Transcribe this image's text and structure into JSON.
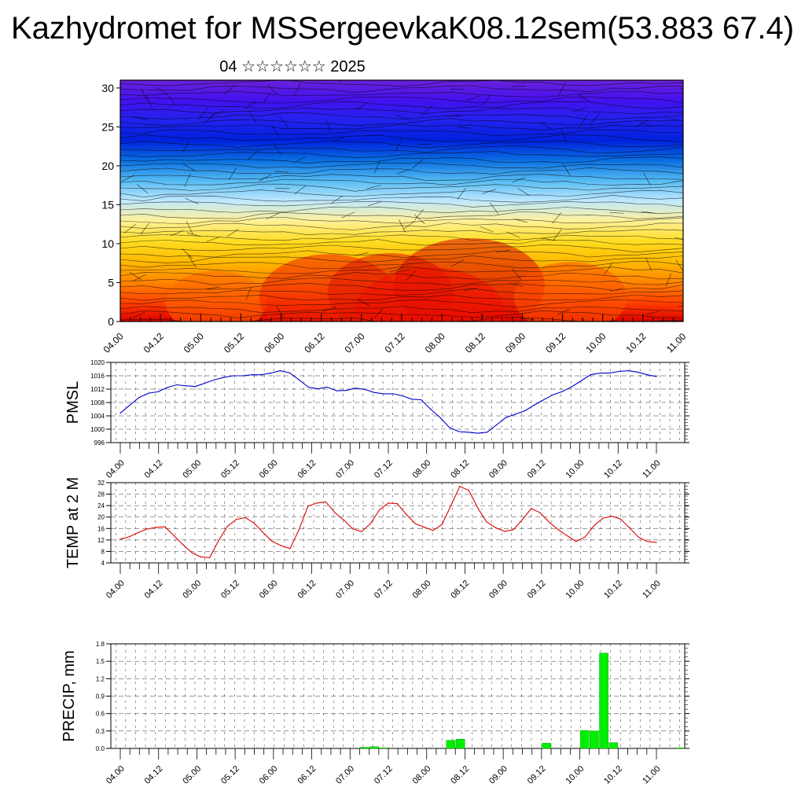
{
  "header": {
    "title": "Kazhydromet for MSSergeevkaK08.12sem(53.883 67.4)",
    "subtitle": "04 ☆☆☆☆☆☆ 2025"
  },
  "colors": {
    "pmsl_line": "#0000cc",
    "temp_line": "#dd0000",
    "precip_bar": "#00ee00",
    "grid": "#000000"
  },
  "chart_data": [
    {
      "type": "heatmap",
      "description_axis": "height",
      "x_ticks": [
        "04.00",
        "04.12",
        "05.00",
        "05.12",
        "06.00",
        "06.12",
        "07.00",
        "07.12",
        "08.00",
        "08.12",
        "09.00",
        "09.12",
        "10.00",
        "10.12",
        "11.00"
      ],
      "y_ticks": [
        "0",
        "5",
        "10",
        "15",
        "20",
        "25",
        "30"
      ],
      "ylim": [
        0,
        31
      ],
      "colormap": [
        "#dd0000",
        "#ff4400",
        "#ff8800",
        "#ffbb00",
        "#ffdd22",
        "#fff199",
        "#bfe8ff",
        "#55bbf2",
        "#0a6fe0",
        "#0022dd",
        "#2222ee",
        "#4411ee",
        "#6a22d8"
      ],
      "overlay": "wind-streamlines"
    },
    {
      "type": "line",
      "ylabel": "PMSL",
      "x_ticks": [
        "04.00",
        "04.12",
        "05.00",
        "05.12",
        "06.00",
        "06.12",
        "07.00",
        "07.12",
        "08.00",
        "08.12",
        "09.00",
        "09.12",
        "10.00",
        "10.12",
        "11.00"
      ],
      "y_ticks": [
        "996",
        "1000",
        "1004",
        "1008",
        "1012",
        "1016",
        "1020"
      ],
      "ylim": [
        996,
        1020
      ],
      "grid": true,
      "series": [
        {
          "values": [
            1004.8,
            1007.2,
            1009.5,
            1010.8,
            1011.2,
            1012.5,
            1013.3,
            1013.0,
            1012.8,
            1013.8,
            1014.8,
            1015.5,
            1016.0,
            1016.0,
            1016.3,
            1016.3,
            1016.8,
            1017.5,
            1016.9,
            1014.8,
            1012.6,
            1012.1,
            1012.6,
            1011.5,
            1011.6,
            1012.3,
            1011.9,
            1011.0,
            1010.6,
            1010.6,
            1010.0,
            1009.0,
            1008.8,
            1006.0,
            1003.5,
            1000.5,
            999.3,
            999.1,
            998.8,
            999.1,
            1001.3,
            1003.5,
            1004.5,
            1005.5,
            1007.2,
            1008.8,
            1010.3,
            1011.3,
            1012.7,
            1014.5,
            1016.3,
            1016.8,
            1016.8,
            1017.3,
            1017.5,
            1017.1,
            1016.3,
            1015.8
          ]
        }
      ]
    },
    {
      "type": "line",
      "ylabel": "TEMP at 2 M",
      "x_ticks": [
        "04.00",
        "04.12",
        "05.00",
        "05.12",
        "06.00",
        "06.12",
        "07.00",
        "07.12",
        "08.00",
        "08.12",
        "09.00",
        "09.12",
        "10.00",
        "10.12",
        "11.00"
      ],
      "y_ticks": [
        "4",
        "8",
        "12",
        "16",
        "20",
        "24",
        "28",
        "32"
      ],
      "ylim": [
        4,
        32
      ],
      "grid": true,
      "series": [
        {
          "values": [
            12.3,
            13.1,
            14.6,
            15.8,
            16.4,
            16.6,
            13.5,
            10.4,
            7.6,
            6.1,
            5.8,
            11.8,
            16.8,
            19.2,
            19.8,
            17.8,
            14.5,
            11.5,
            10.0,
            9.0,
            15.6,
            23.8,
            24.9,
            25.3,
            21.6,
            19.0,
            15.9,
            14.9,
            17.7,
            22.5,
            24.9,
            24.7,
            21.0,
            17.7,
            16.5,
            15.3,
            17.4,
            24.0,
            30.7,
            29.3,
            23.2,
            18.3,
            16.3,
            15.0,
            15.6,
            19.1,
            23.0,
            21.5,
            18.2,
            15.6,
            13.5,
            11.5,
            13.0,
            16.9,
            19.6,
            20.3,
            19.3,
            16.2,
            13.0,
            11.4,
            11.2
          ]
        }
      ]
    },
    {
      "type": "bar",
      "ylabel": "PRECIP, mm",
      "x_ticks": [
        "04.00",
        "04.12",
        "05.00",
        "05.12",
        "06.00",
        "06.12",
        "07.00",
        "07.12",
        "08.00",
        "08.12",
        "09.00",
        "09.12",
        "10.00",
        "10.12",
        "11.00"
      ],
      "y_ticks": [
        "0.0",
        "0.3",
        "0.6",
        "0.9",
        "1.2",
        "1.5",
        "1.8"
      ],
      "ylim": [
        0,
        1.8
      ],
      "grid": true,
      "series": [
        {
          "values": [
            0,
            0,
            0,
            0,
            0,
            0,
            0,
            0,
            0,
            0,
            0,
            0,
            0,
            0,
            0,
            0,
            0,
            0,
            0,
            0,
            0,
            0,
            0,
            0,
            0,
            0,
            0.02,
            0.03,
            0.01,
            0,
            0,
            0,
            0,
            0,
            0,
            0.14,
            0.16,
            0,
            0,
            0,
            0,
            0,
            0,
            0,
            0,
            0.09,
            0,
            0,
            0,
            0.31,
            0.3,
            1.64,
            0.1,
            0,
            0,
            0,
            0,
            0,
            0,
            0.01
          ]
        }
      ]
    }
  ]
}
